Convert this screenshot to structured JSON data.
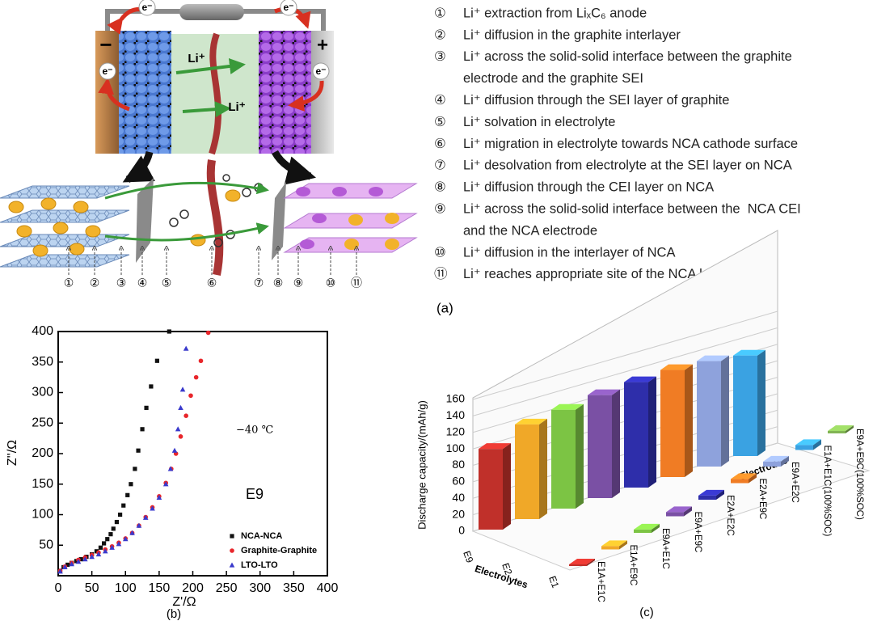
{
  "panel_a": {
    "battery": {
      "electron_labels": [
        "e⁻",
        "e⁻",
        "e⁻",
        "e⁻"
      ],
      "minus": "−",
      "plus": "+",
      "ion_labels": [
        "Li⁺",
        "Li⁺"
      ]
    },
    "steps": [
      {
        "marker": "①",
        "lines": [
          "Li⁺ extraction from LiₓC₆ anode"
        ]
      },
      {
        "marker": "②",
        "lines": [
          "Li⁺ diffusion in the graphite interlayer"
        ]
      },
      {
        "marker": "③",
        "lines": [
          "Li⁺ across the solid-solid interface between the graphite",
          "electrode and the graphite SEI"
        ]
      },
      {
        "marker": "④",
        "lines": [
          "Li⁺ diffusion through the SEI layer of graphite"
        ]
      },
      {
        "marker": "⑤",
        "lines": [
          "Li⁺ solvation in electrolyte"
        ]
      },
      {
        "marker": "⑥",
        "lines": [
          "Li⁺ migration in electrolyte towards NCA cathode surface"
        ]
      },
      {
        "marker": "⑦",
        "lines": [
          "Li⁺ desolvation from electrolyte at the SEI layer on NCA"
        ]
      },
      {
        "marker": "⑧",
        "lines": [
          "Li⁺ diffusion through the CEI layer on NCA"
        ]
      },
      {
        "marker": "⑨",
        "lines": [
          "Li⁺ across the solid-solid interface between the  NCA CEI",
          "and the NCA electrode"
        ]
      },
      {
        "marker": "⑩",
        "lines": [
          "Li⁺ diffusion in the interlayer of NCA"
        ]
      },
      {
        "marker": "⑪",
        "lines": [
          "Li⁺ reaches appropriate site of the NCA lattice"
        ]
      }
    ],
    "caption": "(a)"
  },
  "chart_data": [
    {
      "type": "scatter",
      "x_label": "Z'/Ω",
      "y_label": "Z''/Ω",
      "annotations": [
        "−40 ℃",
        "E9"
      ],
      "xlim": [
        0,
        400
      ],
      "ylim": [
        0,
        400
      ],
      "xticks": [
        0,
        50,
        100,
        150,
        200,
        250,
        300,
        350,
        400
      ],
      "yticks": [
        50,
        100,
        150,
        200,
        250,
        300,
        350,
        400
      ],
      "legend": "lower right",
      "series": [
        {
          "name": "NCA-NCA",
          "color": "#111111",
          "marker": "square",
          "x": [
            3,
            8,
            14,
            20,
            27,
            34,
            42,
            50,
            57,
            63,
            68,
            73,
            78,
            82,
            87,
            92,
            97,
            103,
            108,
            114,
            119,
            125,
            131,
            138,
            147,
            165
          ],
          "y": [
            8,
            14,
            18,
            21,
            24,
            27,
            31,
            35,
            40,
            46,
            53,
            60,
            68,
            77,
            88,
            100,
            115,
            132,
            150,
            175,
            205,
            240,
            275,
            310,
            352,
            400
          ]
        },
        {
          "name": "Graphite-Graphite",
          "color": "#e8262b",
          "marker": "circle",
          "x": [
            3,
            10,
            20,
            30,
            40,
            50,
            60,
            70,
            80,
            90,
            100,
            110,
            120,
            130,
            140,
            150,
            160,
            168,
            175,
            182,
            190,
            197,
            205,
            212,
            223
          ],
          "y": [
            8,
            15,
            21,
            26,
            30,
            34,
            38,
            43,
            48,
            54,
            61,
            70,
            82,
            96,
            112,
            130,
            152,
            175,
            200,
            228,
            262,
            295,
            325,
            352,
            398
          ]
        },
        {
          "name": "LTO-LTO",
          "color": "#3a3acc",
          "marker": "triangle",
          "x": [
            3,
            10,
            20,
            30,
            40,
            50,
            60,
            70,
            80,
            90,
            100,
            110,
            120,
            130,
            140,
            150,
            160,
            167,
            173,
            178,
            182,
            185,
            190
          ],
          "y": [
            7,
            14,
            19,
            23,
            27,
            31,
            35,
            40,
            46,
            52,
            60,
            70,
            82,
            95,
            110,
            128,
            150,
            175,
            205,
            240,
            275,
            305,
            372
          ]
        }
      ],
      "caption": "(b)"
    },
    {
      "type": "bar3d",
      "y_label": "Discharge capacity/(mAh/g)",
      "x_label": "Electrodes",
      "depth_label": "Electrolytes",
      "categories": [
        "E1A+E1C",
        "E1A+E9C",
        "E9A+E1C",
        "E9A+E9C",
        "E2A+E2C",
        "E2A+E9C",
        "E9A+E2C",
        "E1A+E1C(100%SOC)",
        "E9A+E9C(100%SOC)"
      ],
      "colors": [
        "#c0302a",
        "#f0a828",
        "#7cc444",
        "#7a50a4",
        "#2e2eaa",
        "#f07c24",
        "#8ea2dc",
        "#3aa2e2",
        "#82b454"
      ],
      "ylim": [
        0,
        160
      ],
      "yticks": [
        0,
        20,
        40,
        60,
        80,
        100,
        120,
        140,
        160
      ],
      "series": [
        {
          "name": "E9",
          "values": [
            98,
            115,
            120,
            125,
            128,
            130,
            128,
            122,
            null
          ]
        },
        {
          "name": "E2",
          "values": [
            null,
            null,
            null,
            null,
            null,
            null,
            null,
            null,
            null
          ]
        },
        {
          "name": "E1",
          "values": [
            2,
            4,
            4,
            5,
            5,
            5,
            6,
            6,
            3
          ]
        }
      ],
      "caption": "(c)"
    }
  ]
}
